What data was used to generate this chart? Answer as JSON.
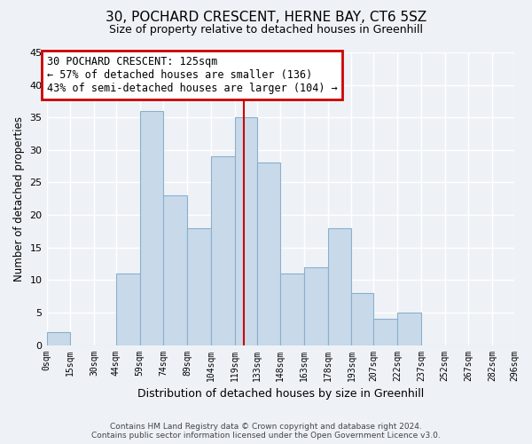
{
  "title": "30, POCHARD CRESCENT, HERNE BAY, CT6 5SZ",
  "subtitle": "Size of property relative to detached houses in Greenhill",
  "xlabel": "Distribution of detached houses by size in Greenhill",
  "ylabel": "Number of detached properties",
  "bar_color": "#c8daea",
  "bar_edge_color": "#8ab0cc",
  "background_color": "#eef2f7",
  "bin_edges": [
    0,
    15,
    30,
    44,
    59,
    74,
    89,
    104,
    119,
    133,
    148,
    163,
    178,
    193,
    207,
    222,
    237,
    252,
    267,
    282,
    296
  ],
  "bin_labels": [
    "0sqm",
    "15sqm",
    "30sqm",
    "44sqm",
    "59sqm",
    "74sqm",
    "89sqm",
    "104sqm",
    "119sqm",
    "133sqm",
    "148sqm",
    "163sqm",
    "178sqm",
    "193sqm",
    "207sqm",
    "222sqm",
    "237sqm",
    "252sqm",
    "267sqm",
    "282sqm",
    "296sqm"
  ],
  "counts": [
    2,
    0,
    0,
    11,
    36,
    23,
    18,
    29,
    35,
    28,
    11,
    12,
    18,
    8,
    4,
    5,
    0,
    0,
    0,
    0
  ],
  "vline_x": 125,
  "annotation_title": "30 POCHARD CRESCENT: 125sqm",
  "annotation_line1": "← 57% of detached houses are smaller (136)",
  "annotation_line2": "43% of semi-detached houses are larger (104) →",
  "annotation_box_color": "#ffffff",
  "annotation_box_edge": "#cc0000",
  "vline_color": "#cc0000",
  "ylim": [
    0,
    45
  ],
  "yticks": [
    0,
    5,
    10,
    15,
    20,
    25,
    30,
    35,
    40,
    45
  ],
  "footer_line1": "Contains HM Land Registry data © Crown copyright and database right 2024.",
  "footer_line2": "Contains public sector information licensed under the Open Government Licence v3.0.",
  "grid_color": "#d8dfe8"
}
